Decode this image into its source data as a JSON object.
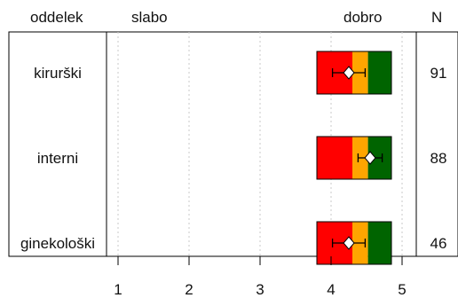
{
  "chart_data": {
    "type": "bar",
    "headers": {
      "category": "oddelek",
      "low": "slabo",
      "high": "dobro",
      "count": "N"
    },
    "categories": [
      "kirurški",
      "interni",
      "ginekološki"
    ],
    "n": [
      91,
      88,
      46
    ],
    "bands": [
      {
        "from": 3.8,
        "to": 4.3,
        "color": "#ff0000"
      },
      {
        "from": 4.3,
        "to": 4.52,
        "color": "#ffa500"
      },
      {
        "from": 4.52,
        "to": 4.85,
        "color": "#006400"
      }
    ],
    "means": [
      4.25,
      4.55,
      4.25
    ],
    "ci": [
      [
        4.02,
        4.48
      ],
      [
        4.38,
        4.72
      ],
      [
        4.02,
        4.48
      ]
    ],
    "xlim": [
      0.85,
      5.2
    ],
    "xticks": [
      1,
      2,
      3,
      4,
      5
    ],
    "grid": true
  }
}
